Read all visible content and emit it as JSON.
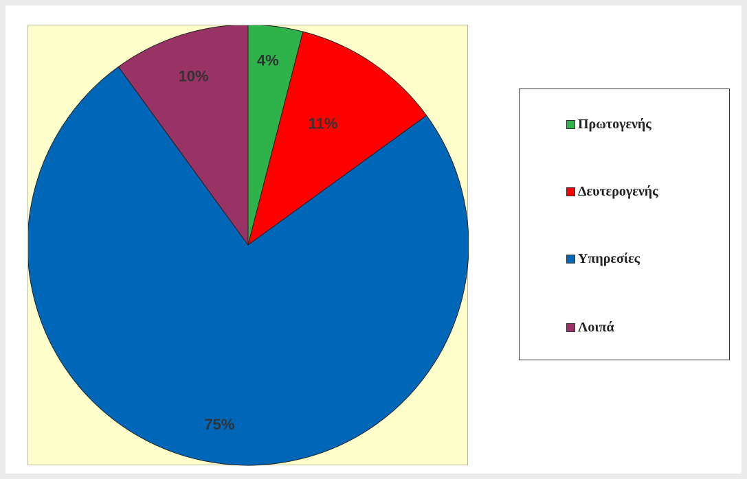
{
  "chart_data": {
    "type": "pie",
    "categories": [
      "Πρωτογενής",
      "Δευτερογενής",
      "Υπηρεσίες",
      "Λοιπά"
    ],
    "values": [
      4,
      11,
      75,
      10
    ],
    "labels": [
      "4%",
      "11%",
      "75%",
      "10%"
    ],
    "colors": [
      "#2db34a",
      "#ff0000",
      "#0066b8",
      "#993366"
    ],
    "start_angle": "12 o'clock, clockwise",
    "plot_background": "#ffffcc",
    "legend_placement": "right"
  },
  "legend": {
    "items": [
      {
        "label": "Πρωτογενής",
        "color": "#2db34a"
      },
      {
        "label": "Δευτερογενής",
        "color": "#ff0000"
      },
      {
        "label": "Υπηρεσίες",
        "color": "#0066b8"
      },
      {
        "label": "Λοιπά",
        "color": "#993366"
      }
    ]
  }
}
